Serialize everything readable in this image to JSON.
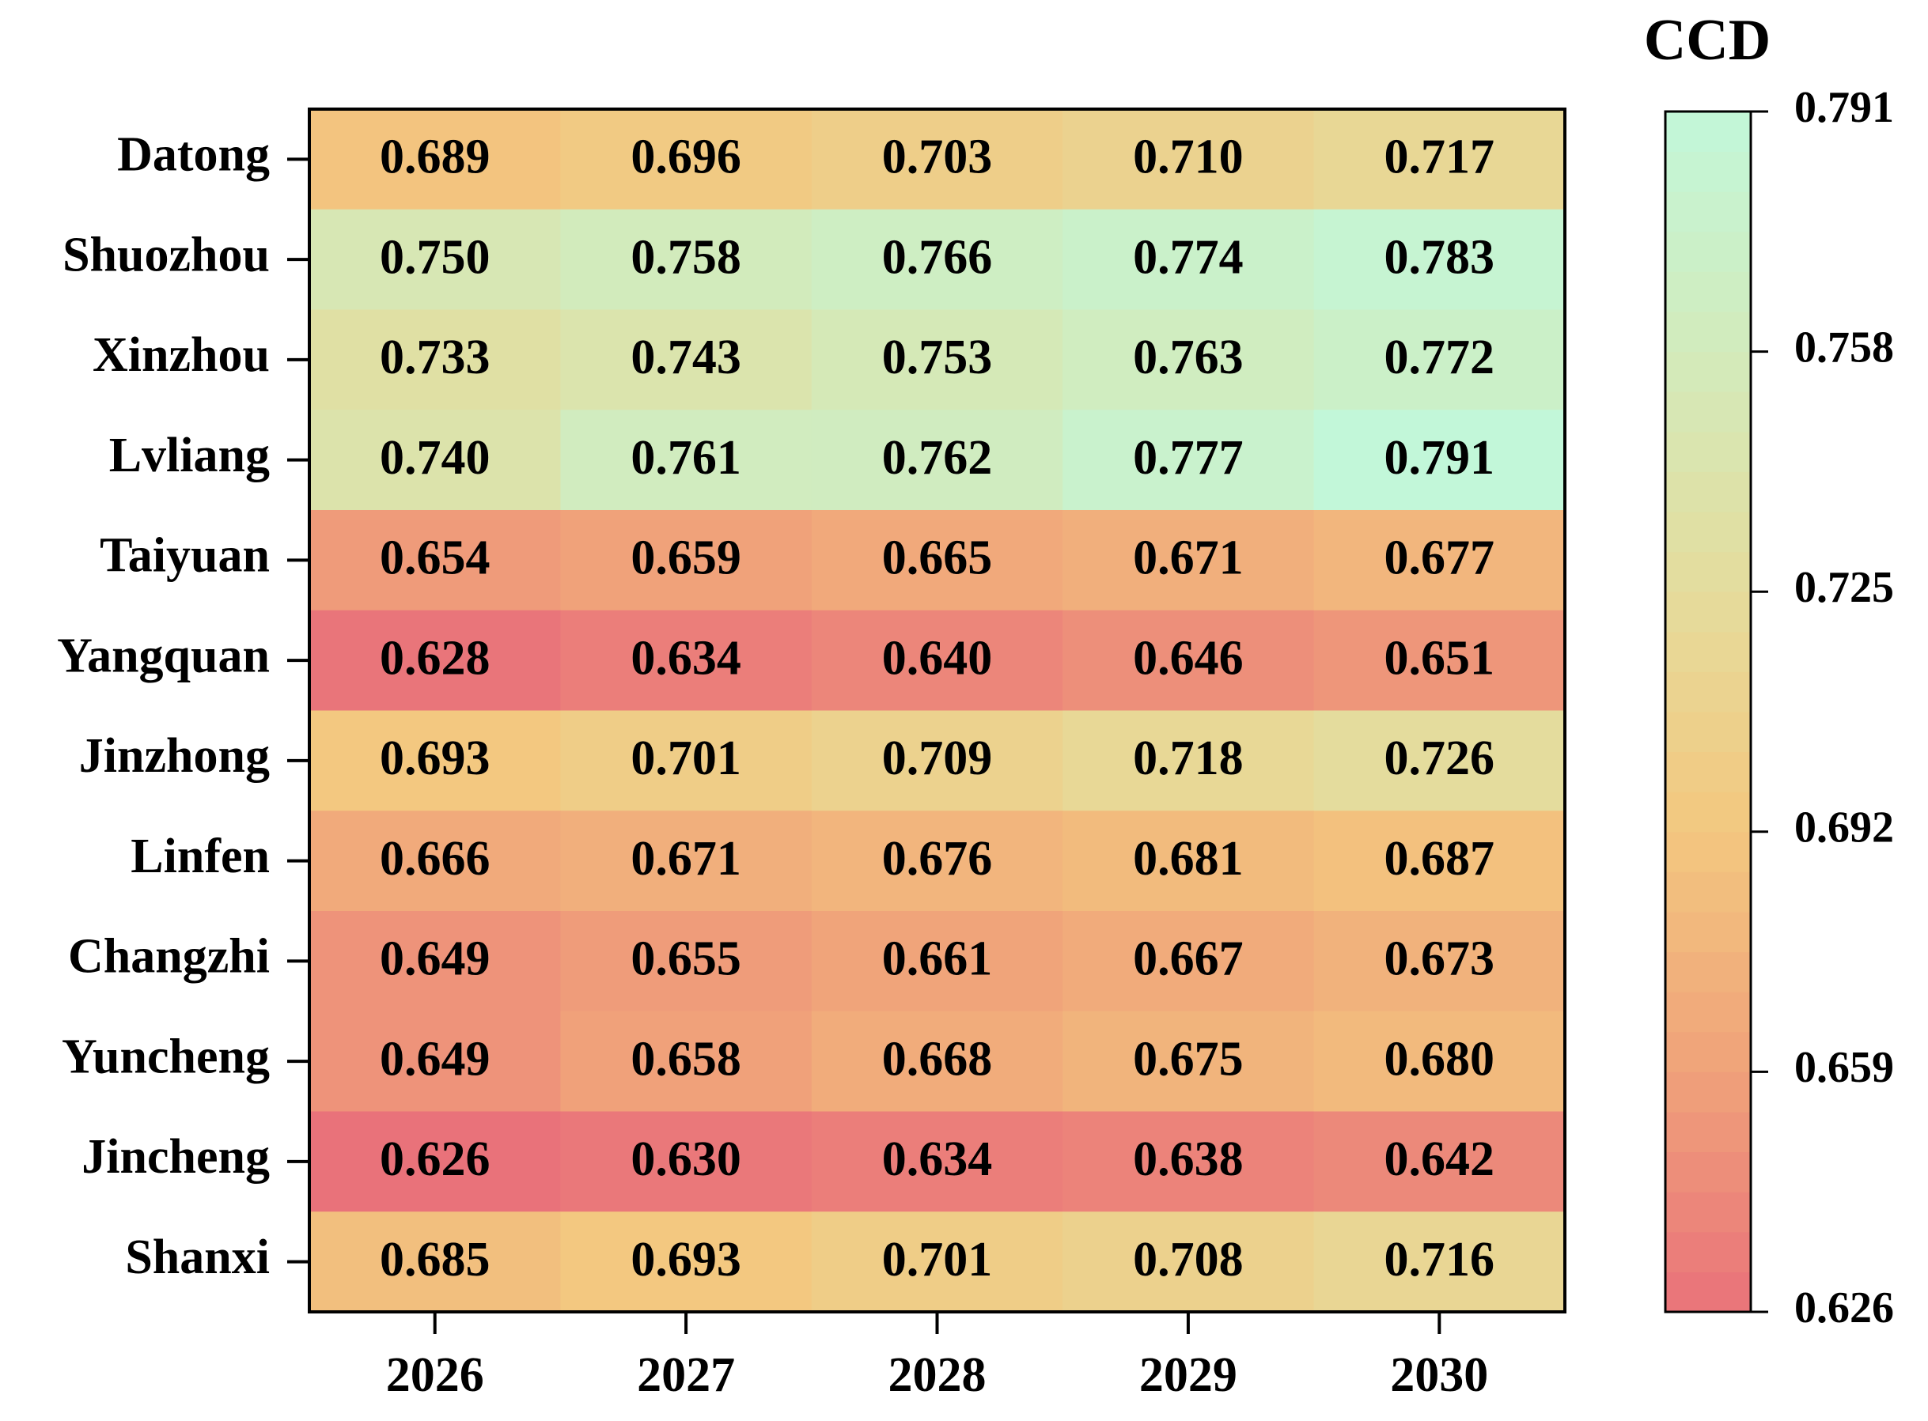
{
  "chart_data": {
    "type": "heatmap",
    "x": [
      "2026",
      "2027",
      "2028",
      "2029",
      "2030"
    ],
    "y": [
      "Datong",
      "Shuozhou",
      "Xinzhou",
      "Lvliang",
      "Taiyuan",
      "Yangquan",
      "Jinzhong",
      "Linfen",
      "Changzhi",
      "Yuncheng",
      "Jincheng",
      "Shanxi"
    ],
    "values": [
      [
        0.689,
        0.696,
        0.703,
        0.71,
        0.717
      ],
      [
        0.75,
        0.758,
        0.766,
        0.774,
        0.783
      ],
      [
        0.733,
        0.743,
        0.753,
        0.763,
        0.772
      ],
      [
        0.74,
        0.761,
        0.762,
        0.777,
        0.791
      ],
      [
        0.654,
        0.659,
        0.665,
        0.671,
        0.677
      ],
      [
        0.628,
        0.634,
        0.64,
        0.646,
        0.651
      ],
      [
        0.693,
        0.701,
        0.709,
        0.718,
        0.726
      ],
      [
        0.666,
        0.671,
        0.676,
        0.681,
        0.687
      ],
      [
        0.649,
        0.655,
        0.661,
        0.667,
        0.673
      ],
      [
        0.649,
        0.658,
        0.668,
        0.675,
        0.68
      ],
      [
        0.626,
        0.63,
        0.634,
        0.638,
        0.642
      ],
      [
        0.685,
        0.693,
        0.701,
        0.708,
        0.716
      ]
    ],
    "value_labels": [
      [
        "0.689",
        "0.696",
        "0.703",
        "0.710",
        "0.717"
      ],
      [
        "0.750",
        "0.758",
        "0.766",
        "0.774",
        "0.783"
      ],
      [
        "0.733",
        "0.743",
        "0.753",
        "0.763",
        "0.772"
      ],
      [
        "0.740",
        "0.761",
        "0.762",
        "0.777",
        "0.791"
      ],
      [
        "0.654",
        "0.659",
        "0.665",
        "0.671",
        "0.677"
      ],
      [
        "0.628",
        "0.634",
        "0.640",
        "0.646",
        "0.651"
      ],
      [
        "0.693",
        "0.701",
        "0.709",
        "0.718",
        "0.726"
      ],
      [
        "0.666",
        "0.671",
        "0.676",
        "0.681",
        "0.687"
      ],
      [
        "0.649",
        "0.655",
        "0.661",
        "0.667",
        "0.673"
      ],
      [
        "0.649",
        "0.658",
        "0.668",
        "0.675",
        "0.680"
      ],
      [
        "0.626",
        "0.630",
        "0.634",
        "0.638",
        "0.642"
      ],
      [
        "0.685",
        "0.693",
        "0.701",
        "0.708",
        "0.716"
      ]
    ],
    "colorbar_label": "CCD",
    "clim": [
      0.626,
      0.791
    ],
    "cticks": [
      0.626,
      0.659,
      0.692,
      0.725,
      0.758,
      0.791
    ],
    "colormap": [
      "#e9727a",
      "#f0a27a",
      "#f3c77f",
      "#e5dc9c",
      "#d2ebbc",
      "#c2f7d9"
    ]
  }
}
